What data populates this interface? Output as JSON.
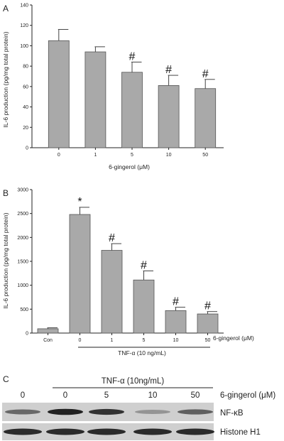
{
  "chart_data": [
    {
      "panel": "A",
      "type": "bar",
      "categories": [
        "0",
        "1",
        "5",
        "10",
        "50"
      ],
      "values": [
        105,
        94,
        74,
        61,
        58
      ],
      "errors": [
        11,
        5,
        10,
        10,
        9
      ],
      "markers": [
        "",
        "",
        "#",
        "#",
        "#"
      ],
      "xlabel": "6-gingerol (μM)",
      "ylabel": "IL-6 production (pg/mg total protein)",
      "ylim": [
        0,
        140
      ],
      "yticks": [
        "0",
        "20",
        "40",
        "60",
        "80",
        "100",
        "120",
        "140"
      ]
    },
    {
      "panel": "B",
      "type": "bar",
      "categories": [
        "Con",
        "0",
        "1",
        "5",
        "10",
        "50"
      ],
      "values": [
        90,
        2480,
        1730,
        1110,
        470,
        400
      ],
      "errors": [
        20,
        150,
        140,
        190,
        70,
        50
      ],
      "markers": [
        "",
        "*",
        "#",
        "#",
        "#",
        "#"
      ],
      "xlabel": "6-gingerol (μM)",
      "group_label": "TNF-α (10 ng/mL)",
      "ylabel": "IL-6 production (pg/mg total protein)",
      "ylim": [
        0,
        3000
      ],
      "yticks": [
        "0",
        "500",
        "1000",
        "1500",
        "2000",
        "2500",
        "3000"
      ]
    }
  ],
  "blot": {
    "panel": "C",
    "treatment_label": "TNF-α (10ng/mL)",
    "dose_label": "6-gingerol (μM)",
    "lanes": [
      "0",
      "0",
      "5",
      "10",
      "50"
    ],
    "rows": [
      {
        "label": "NF-κB",
        "intensity": [
          0.55,
          0.95,
          0.85,
          0.3,
          0.6
        ]
      },
      {
        "label": "Histone H1",
        "intensity": [
          0.9,
          0.9,
          0.9,
          0.9,
          0.9
        ]
      }
    ]
  }
}
